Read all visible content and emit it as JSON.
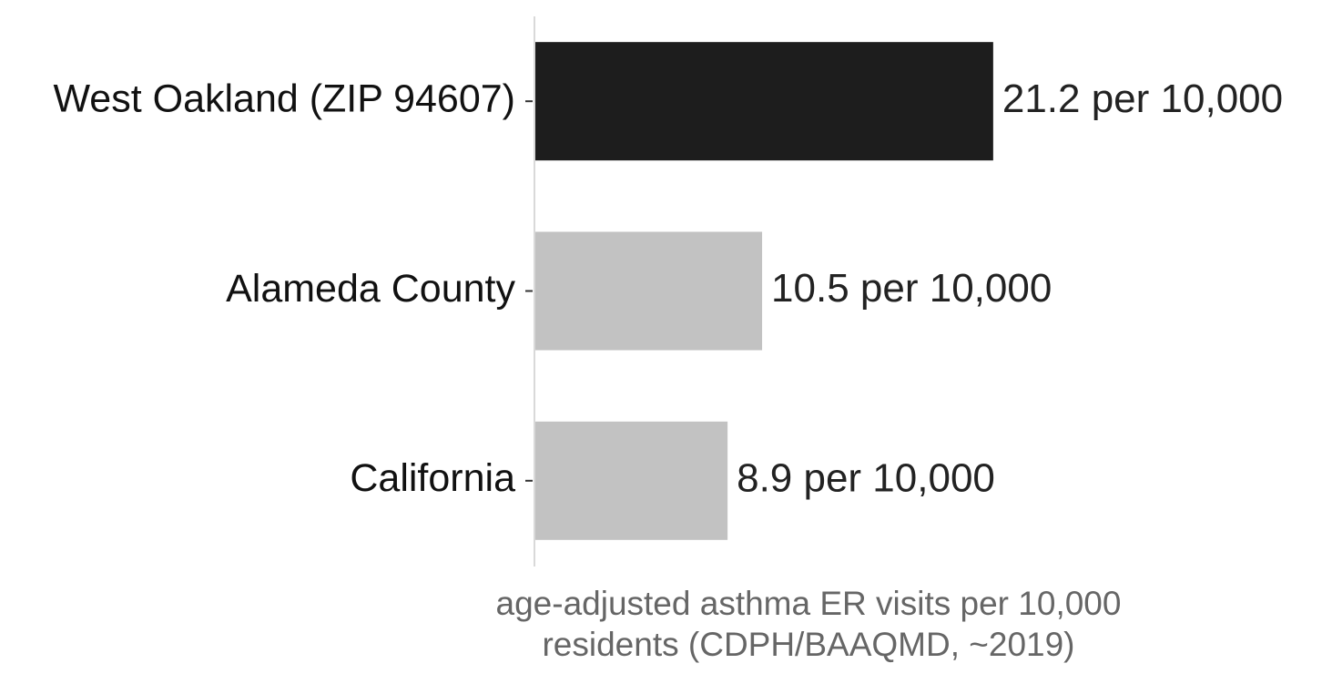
{
  "chart_data": {
    "type": "barh",
    "categories": [
      "West Oakland (ZIP 94607)",
      "Alameda County",
      "California"
    ],
    "values": [
      21.2,
      10.5,
      8.9
    ],
    "value_labels": [
      "21.2 per 10,000",
      "10.5 per 10,000",
      "8.9 per 10,000"
    ],
    "colors": [
      "#1d1d1d",
      "#c2c2c2",
      "#c2c2c2"
    ],
    "xlim": [
      0,
      22.26
    ],
    "xlabel": [
      "age-adjusted asthma ER visits per 10,000",
      "residents (CDPH/BAAQMD, ~2019)"
    ]
  }
}
